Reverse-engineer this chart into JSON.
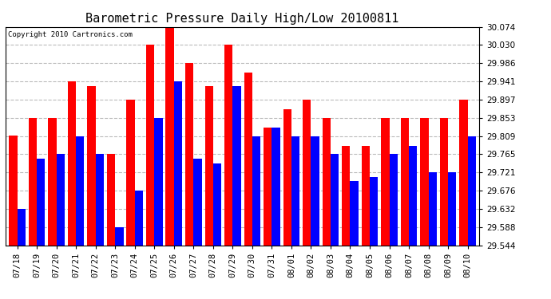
{
  "title": "Barometric Pressure Daily High/Low 20100811",
  "copyright": "Copyright 2010 Cartronics.com",
  "dates": [
    "07/18",
    "07/19",
    "07/20",
    "07/21",
    "07/22",
    "07/23",
    "07/24",
    "07/25",
    "07/26",
    "07/27",
    "07/28",
    "07/29",
    "07/30",
    "07/31",
    "08/01",
    "08/02",
    "08/03",
    "08/04",
    "08/05",
    "08/06",
    "08/07",
    "08/08",
    "08/09",
    "08/10"
  ],
  "highs": [
    29.81,
    29.853,
    29.853,
    29.941,
    29.93,
    29.765,
    29.897,
    30.03,
    30.074,
    29.986,
    29.93,
    30.03,
    29.963,
    29.83,
    29.875,
    29.897,
    29.853,
    29.785,
    29.785,
    29.853,
    29.853,
    29.853,
    29.853,
    29.897
  ],
  "lows": [
    29.632,
    29.755,
    29.765,
    29.809,
    29.765,
    29.588,
    29.676,
    29.853,
    29.941,
    29.755,
    29.743,
    29.93,
    29.809,
    29.83,
    29.809,
    29.809,
    29.765,
    29.7,
    29.71,
    29.765,
    29.785,
    29.721,
    29.721,
    29.809
  ],
  "high_color": "#FF0000",
  "low_color": "#0000FF",
  "bg_color": "#FFFFFF",
  "grid_color": "#BBBBBB",
  "ymin": 29.544,
  "ymax": 30.074,
  "yticks": [
    29.544,
    29.588,
    29.632,
    29.676,
    29.721,
    29.765,
    29.809,
    29.853,
    29.897,
    29.941,
    29.986,
    30.03,
    30.074
  ],
  "bar_width": 0.42,
  "title_fontsize": 11,
  "tick_fontsize": 7.5,
  "copyright_fontsize": 6.5
}
